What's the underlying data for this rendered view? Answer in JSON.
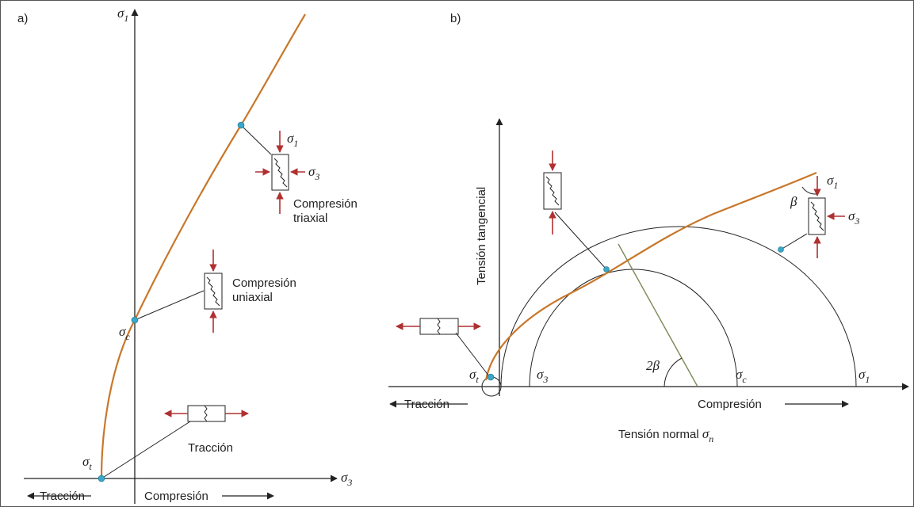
{
  "panel_a": {
    "label": "a)",
    "axis_y": {
      "base": "σ",
      "sub": "1"
    },
    "axis_x": {
      "base": "σ",
      "sub": "3"
    },
    "triaxial": {
      "top": {
        "base": "σ",
        "sub": "1"
      },
      "side": {
        "base": "σ",
        "sub": "3"
      },
      "line1": "Compresión",
      "line2": "triaxial"
    },
    "uniaxial": {
      "point": {
        "base": "σ",
        "sub": "c"
      },
      "line1": "Compresión",
      "line2": "uniaxial"
    },
    "traction": {
      "point": {
        "base": "σ",
        "sub": "t"
      },
      "label": "Tracción"
    },
    "bottom_left": "Tracción",
    "bottom_right": "Compresión"
  },
  "panel_b": {
    "label": "b)",
    "axis_y": "Tensión tangencial",
    "axis_x": {
      "text": "Tensión normal ",
      "base": "σ",
      "sub": "n"
    },
    "bottom_left": "Tracción",
    "bottom_right": "Compresión",
    "sigma_t": {
      "base": "σ",
      "sub": "t"
    },
    "sigma_3": {
      "base": "σ",
      "sub": "3"
    },
    "sigma_c": {
      "base": "σ",
      "sub": "c"
    },
    "sigma_1": {
      "base": "σ",
      "sub": "1"
    },
    "two_beta": "2β",
    "beta": "β",
    "sample_top": {
      "base": "σ",
      "sub": "1"
    },
    "sample_side": {
      "base": "σ",
      "sub": "3"
    }
  }
}
